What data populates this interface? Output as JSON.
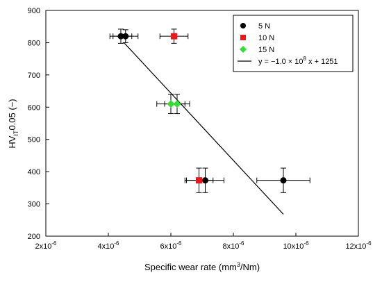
{
  "chart_data": {
    "type": "scatter",
    "xlabel_parts": [
      "Specific wear rate (mm",
      "3",
      "/Nm)"
    ],
    "ylabel_parts": [
      "HV",
      "IT",
      "0.05 (−)"
    ],
    "x_ticks": [
      2e-06,
      4e-06,
      6e-06,
      8e-06,
      1e-05,
      1.2e-05
    ],
    "x_tick_labels": [
      {
        "base": "2x10",
        "exp": "-6"
      },
      {
        "base": "4x10",
        "exp": "-6"
      },
      {
        "base": "6x10",
        "exp": "-6"
      },
      {
        "base": "8x10",
        "exp": "-6"
      },
      {
        "base": "10x10",
        "exp": "-6"
      },
      {
        "base": "12x10",
        "exp": "-6"
      }
    ],
    "y_ticks": [
      200,
      300,
      400,
      500,
      600,
      700,
      800,
      900
    ],
    "y_tick_labels": [
      "200",
      "300",
      "400",
      "500",
      "600",
      "700",
      "800",
      "900"
    ],
    "xlim": [
      2e-06,
      1.2e-05
    ],
    "ylim": [
      200,
      900
    ],
    "grid": false,
    "legend_position": "top-right",
    "series": [
      {
        "name": "5 N",
        "marker": "circle",
        "color": "#000000",
        "points": [
          {
            "x": 4.4e-06,
            "y": 820,
            "xerr": 3.5e-07,
            "yerr": 22
          },
          {
            "x": 4.55e-06,
            "y": 820,
            "xerr": 4e-07,
            "yerr": 20
          },
          {
            "x": 7.1e-06,
            "y": 373,
            "xerr": 6e-07,
            "yerr": 38
          },
          {
            "x": 9.6e-06,
            "y": 373,
            "xerr": 8.5e-07,
            "yerr": 38
          }
        ]
      },
      {
        "name": "10 N",
        "marker": "square",
        "color": "#e41a1c",
        "points": [
          {
            "x": 6.1e-06,
            "y": 820,
            "xerr": 4.5e-07,
            "yerr": 22
          },
          {
            "x": 6.9e-06,
            "y": 373,
            "xerr": 4.5e-07,
            "yerr": 38
          }
        ]
      },
      {
        "name": "15 N",
        "marker": "diamond",
        "color": "#33dd33",
        "points": [
          {
            "x": 6e-06,
            "y": 610,
            "xerr": 4.5e-07,
            "yerr": 30
          },
          {
            "x": 6.2e-06,
            "y": 610,
            "xerr": 4e-07,
            "yerr": 30
          }
        ]
      }
    ],
    "fit_line": {
      "label_parts": [
        "y = −1.0 × 10",
        "8",
        " x + 1251"
      ],
      "x_range": [
        4.5e-06,
        9.6e-06
      ],
      "y_range": [
        800,
        268
      ],
      "color": "#000000"
    }
  }
}
